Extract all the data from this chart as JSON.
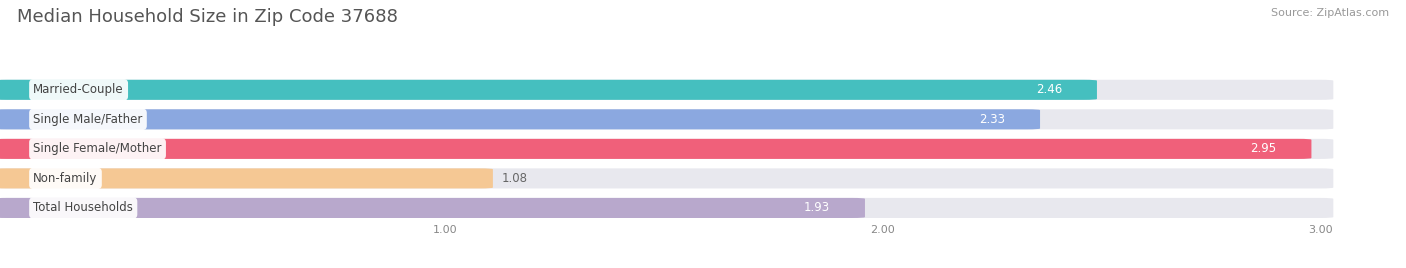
{
  "title": "Median Household Size in Zip Code 37688",
  "source": "Source: ZipAtlas.com",
  "categories": [
    "Married-Couple",
    "Single Male/Father",
    "Single Female/Mother",
    "Non-family",
    "Total Households"
  ],
  "values": [
    2.46,
    2.33,
    2.95,
    1.08,
    1.93
  ],
  "bar_colors": [
    "#45BFBF",
    "#8BA8E0",
    "#F0607A",
    "#F5C894",
    "#B8A8CC"
  ],
  "background_color": "#ffffff",
  "bar_bg_color": "#e8e8ee",
  "xlim_left": 0.0,
  "xlim_right": 3.18,
  "data_min": 0.0,
  "data_max": 3.0,
  "xticks": [
    1.0,
    2.0,
    3.0
  ],
  "xtick_labels": [
    "1.00",
    "2.00",
    "3.00"
  ],
  "title_fontsize": 13,
  "label_fontsize": 8.5,
  "value_fontsize": 8.5,
  "source_fontsize": 8
}
